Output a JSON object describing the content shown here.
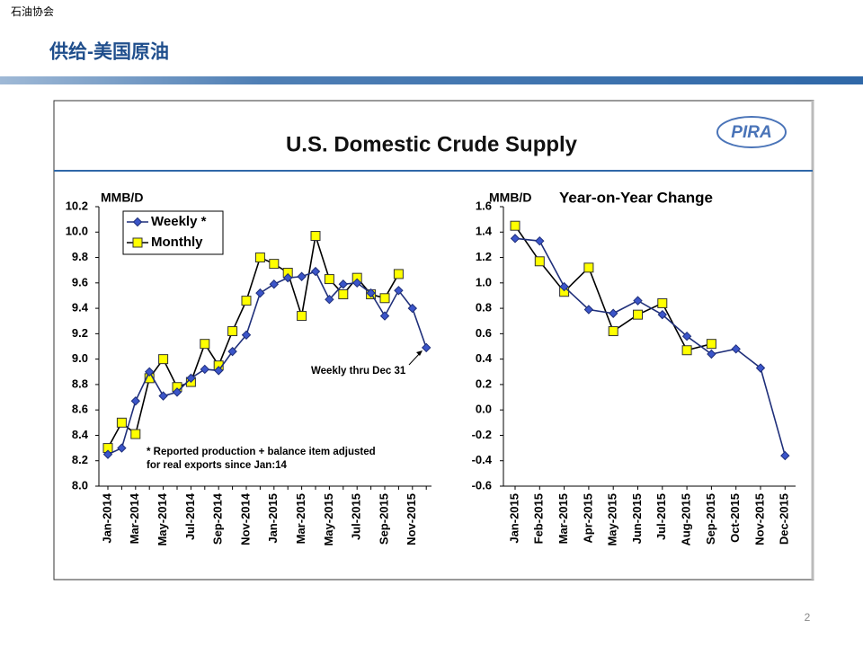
{
  "header_label": "石油协会",
  "slide_title": "供给-美国原油",
  "panel_title": "U.S. Domestic Crude Supply",
  "logo": "PIRA",
  "page_number": "2",
  "chart_data": [
    {
      "type": "line",
      "ylabel": "MMB/D",
      "categories": [
        "Jan-2014",
        null,
        "Mar-2014",
        null,
        "May-2014",
        null,
        "Jul-2014",
        null,
        "Sep-2014",
        null,
        "Nov-2014",
        null,
        "Jan-2015",
        null,
        "Mar-2015",
        null,
        "May-2015",
        null,
        "Jul-2015",
        null,
        "Sep-2015",
        null,
        "Nov-2015",
        null
      ],
      "series": [
        {
          "name": "Weekly *",
          "color": "#1f2f7a",
          "marker_color": "#3b55c9",
          "marker": "diamond",
          "values": [
            8.25,
            8.3,
            8.67,
            8.9,
            8.71,
            8.74,
            8.85,
            8.92,
            8.91,
            9.06,
            9.19,
            9.52,
            9.59,
            9.64,
            9.65,
            9.69,
            9.47,
            9.59,
            9.6,
            9.52,
            9.34,
            9.54,
            9.4,
            9.09
          ]
        },
        {
          "name": "Monthly",
          "color": "#000000",
          "marker_color": "#ffff00",
          "marker": "square",
          "values": [
            8.3,
            8.5,
            8.41,
            8.85,
            9.0,
            8.78,
            8.82,
            9.12,
            8.95,
            9.22,
            9.46,
            9.8,
            9.75,
            9.68,
            9.34,
            9.97,
            9.63,
            9.51,
            9.64,
            9.51,
            9.48,
            9.67,
            null,
            null
          ]
        }
      ],
      "ylim": [
        8.0,
        10.2
      ],
      "yticks": [
        {
          "value": 8.0,
          "label": "8.0"
        },
        8.2,
        8.4,
        8.6,
        8.8,
        {
          "value": 9.0,
          "label": "9.0"
        },
        9.2,
        9.4,
        9.6,
        9.8,
        {
          "value": 10.0,
          "label": "10.0"
        },
        10.2
      ],
      "annotations": [
        "Weekly thru Dec 31",
        "* Reported production + balance item adjusted",
        "for real exports since Jan:14"
      ],
      "legend": "upper left"
    },
    {
      "type": "line",
      "ylabel": "MMB/D",
      "subtitle": "Year-on-Year Change",
      "categories": [
        "Jan-2015",
        "Feb-2015",
        "Mar-2015",
        "Apr-2015",
        "May-2015",
        "Jun-2015",
        "Jul-2015",
        "Aug-2015",
        "Sep-2015",
        "Oct-2015",
        "Nov-2015",
        "Dec-2015"
      ],
      "series": [
        {
          "color": "#1f2f7a",
          "marker_color": "#3b55c9",
          "marker": "diamond",
          "values": [
            1.35,
            1.33,
            0.97,
            0.79,
            0.76,
            0.86,
            0.75,
            0.58,
            0.44,
            0.48,
            0.33,
            -0.36
          ]
        },
        {
          "color": "#000000",
          "marker_color": "#ffff00",
          "marker": "square",
          "values": [
            1.45,
            1.17,
            0.93,
            1.12,
            0.62,
            0.75,
            0.84,
            0.47,
            0.52,
            null,
            null,
            null
          ]
        }
      ],
      "ylim": [
        -0.6,
        1.6
      ],
      "yticks": [
        -0.6,
        -0.4,
        -0.2,
        {
          "value": 0.0,
          "label": "0.0"
        },
        0.2,
        0.4,
        0.6,
        0.8,
        {
          "value": 1.0,
          "label": "1.0"
        },
        1.2,
        1.4,
        1.6
      ]
    }
  ]
}
